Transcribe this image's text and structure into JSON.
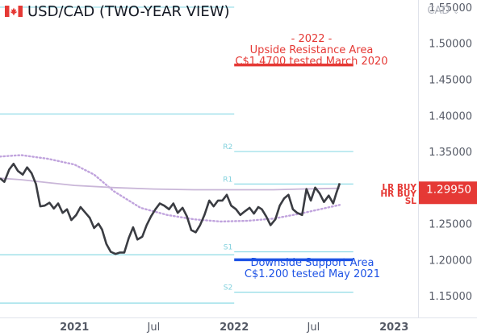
{
  "chart_data": {
    "type": "line",
    "title": "USD/CAD (TWO-YEAR VIEW)",
    "currency_label": "CAD",
    "x_ticks": [
      {
        "label": "2021",
        "date": "2021-01-01"
      },
      {
        "label": "Jul",
        "date": "2021-07-01"
      },
      {
        "label": "2022",
        "date": "2022-01-01"
      },
      {
        "label": "Jul",
        "date": "2022-07-01"
      },
      {
        "label": "2023",
        "date": "2023-01-01"
      }
    ],
    "x_range": [
      "2020-07-15",
      "2023-02-25"
    ],
    "y_range": [
      1.12,
      1.56
    ],
    "y_ticks": [
      "1.55000",
      "1.50000",
      "1.45000",
      "1.40000",
      "1.35000",
      "1.30000",
      "1.25000",
      "1.20000",
      "1.15000"
    ],
    "grid": false,
    "colors": {
      "price": "#3a3c42",
      "ma_solid": "#c9b6d8",
      "ma_dotted": "#c0a3dd",
      "pivot": "#8fdbe6",
      "resistance": "#e53935",
      "support": "#1e53e5"
    },
    "series": [
      {
        "key": "price",
        "points": [
          [
            "2020-07-15",
            1.313
          ],
          [
            "2020-07-25",
            1.308
          ],
          [
            "2020-08-05",
            1.325
          ],
          [
            "2020-08-15",
            1.333
          ],
          [
            "2020-08-25",
            1.323
          ],
          [
            "2020-09-05",
            1.318
          ],
          [
            "2020-09-15",
            1.328
          ],
          [
            "2020-09-25",
            1.32
          ],
          [
            "2020-10-05",
            1.305
          ],
          [
            "2020-10-15",
            1.274
          ],
          [
            "2020-10-25",
            1.275
          ],
          [
            "2020-11-05",
            1.279
          ],
          [
            "2020-11-15",
            1.271
          ],
          [
            "2020-11-25",
            1.278
          ],
          [
            "2020-12-05",
            1.265
          ],
          [
            "2020-12-15",
            1.27
          ],
          [
            "2020-12-25",
            1.255
          ],
          [
            "2021-01-05",
            1.262
          ],
          [
            "2021-01-15",
            1.273
          ],
          [
            "2021-01-25",
            1.266
          ],
          [
            "2021-02-05",
            1.258
          ],
          [
            "2021-02-15",
            1.244
          ],
          [
            "2021-02-25",
            1.25
          ],
          [
            "2021-03-05",
            1.242
          ],
          [
            "2021-03-15",
            1.222
          ],
          [
            "2021-03-25",
            1.211
          ],
          [
            "2021-04-05",
            1.208
          ],
          [
            "2021-04-15",
            1.21
          ],
          [
            "2021-04-25",
            1.21
          ],
          [
            "2021-05-05",
            1.23
          ],
          [
            "2021-05-15",
            1.245
          ],
          [
            "2021-05-25",
            1.228
          ],
          [
            "2021-06-05",
            1.232
          ],
          [
            "2021-06-15",
            1.248
          ],
          [
            "2021-06-25",
            1.26
          ],
          [
            "2021-07-05",
            1.27
          ],
          [
            "2021-07-15",
            1.278
          ],
          [
            "2021-07-25",
            1.275
          ],
          [
            "2021-08-05",
            1.27
          ],
          [
            "2021-08-15",
            1.278
          ],
          [
            "2021-08-25",
            1.265
          ],
          [
            "2021-09-05",
            1.272
          ],
          [
            "2021-09-15",
            1.26
          ],
          [
            "2021-09-25",
            1.241
          ],
          [
            "2021-10-05",
            1.238
          ],
          [
            "2021-10-15",
            1.248
          ],
          [
            "2021-10-25",
            1.262
          ],
          [
            "2021-11-05",
            1.282
          ],
          [
            "2021-11-15",
            1.274
          ],
          [
            "2021-11-25",
            1.282
          ],
          [
            "2021-12-05",
            1.282
          ],
          [
            "2021-12-15",
            1.29
          ],
          [
            "2021-12-25",
            1.275
          ],
          [
            "2022-01-05",
            1.27
          ],
          [
            "2022-01-15",
            1.262
          ],
          [
            "2022-01-25",
            1.267
          ],
          [
            "2022-02-05",
            1.272
          ],
          [
            "2022-02-15",
            1.264
          ],
          [
            "2022-02-25",
            1.273
          ],
          [
            "2022-03-05",
            1.27
          ],
          [
            "2022-03-15",
            1.26
          ],
          [
            "2022-03-25",
            1.248
          ],
          [
            "2022-04-05",
            1.256
          ],
          [
            "2022-04-15",
            1.275
          ],
          [
            "2022-04-25",
            1.285
          ],
          [
            "2022-05-05",
            1.29
          ],
          [
            "2022-05-15",
            1.27
          ],
          [
            "2022-05-25",
            1.265
          ],
          [
            "2022-06-05",
            1.262
          ],
          [
            "2022-06-15",
            1.298
          ],
          [
            "2022-06-25",
            1.282
          ],
          [
            "2022-07-05",
            1.3
          ],
          [
            "2022-07-15",
            1.292
          ],
          [
            "2022-07-25",
            1.28
          ],
          [
            "2022-08-05",
            1.289
          ],
          [
            "2022-08-15",
            1.278
          ],
          [
            "2022-08-22",
            1.292
          ],
          [
            "2022-08-30",
            1.306
          ]
        ]
      },
      {
        "key": "ma_solid",
        "points": [
          [
            "2020-07-15",
            1.313
          ],
          [
            "2020-09-01",
            1.311
          ],
          [
            "2020-11-01",
            1.307
          ],
          [
            "2021-01-01",
            1.303
          ],
          [
            "2021-04-01",
            1.3
          ],
          [
            "2021-07-01",
            1.298
          ],
          [
            "2021-10-01",
            1.297
          ],
          [
            "2022-01-01",
            1.297
          ],
          [
            "2022-04-01",
            1.297
          ],
          [
            "2022-06-01",
            1.298
          ],
          [
            "2022-08-30",
            1.299
          ]
        ]
      },
      {
        "key": "ma_dotted",
        "points": [
          [
            "2020-07-15",
            1.343
          ],
          [
            "2020-09-01",
            1.345
          ],
          [
            "2020-11-01",
            1.34
          ],
          [
            "2021-01-01",
            1.332
          ],
          [
            "2021-02-15",
            1.318
          ],
          [
            "2021-04-01",
            1.295
          ],
          [
            "2021-06-01",
            1.272
          ],
          [
            "2021-08-01",
            1.262
          ],
          [
            "2021-10-01",
            1.256
          ],
          [
            "2021-12-01",
            1.253
          ],
          [
            "2022-02-01",
            1.254
          ],
          [
            "2022-04-01",
            1.257
          ],
          [
            "2022-06-01",
            1.264
          ],
          [
            "2022-08-30",
            1.276
          ]
        ]
      }
    ],
    "pivot_sets": [
      {
        "start": "2020-07-15",
        "end": "2022-01-01",
        "levels": [
          {
            "label": "R2",
            "value": 1.55
          },
          {
            "label": "R1",
            "value": 1.402
          },
          {
            "label": "S1",
            "value": 1.207
          },
          {
            "label": "S2",
            "value": 1.14
          }
        ]
      },
      {
        "start": "2022-01-01",
        "end": "2022-09-30",
        "levels": [
          {
            "label": "R2",
            "value": 1.35
          },
          {
            "label": "R1",
            "value": 1.305
          },
          {
            "label": "S1",
            "value": 1.211
          },
          {
            "label": "S2",
            "value": 1.155
          }
        ]
      }
    ],
    "zones": [
      {
        "key": "resistance",
        "value": 1.47,
        "start": "2022-01-01",
        "end": "2022-09-30",
        "text": [
          "- 2022 -",
          "Upside Resistance Area",
          "C$1.4700 tested March 2020"
        ]
      },
      {
        "key": "support",
        "value": 1.2,
        "start": "2022-01-01",
        "end": "2022-09-30",
        "text": [
          "Downside Support Area",
          "C$1.200 tested May 2021"
        ]
      }
    ],
    "signals": [
      "LR BUY",
      "HR BUY",
      "SL"
    ],
    "price_tag": {
      "value": 1.2995,
      "label": "1.29950"
    }
  }
}
